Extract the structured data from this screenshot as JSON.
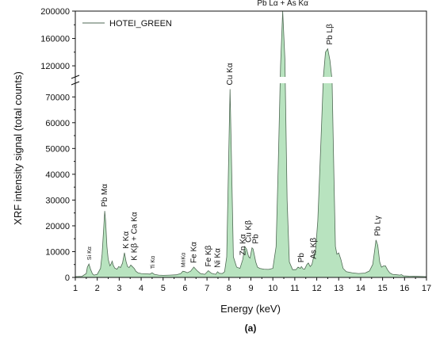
{
  "caption": "(a)",
  "chart_data": {
    "type": "area",
    "xlabel": "Energy (keV)",
    "ylabel": "XRF intensity signal (total counts)",
    "xlim": [
      1,
      17
    ],
    "x_ticks": [
      1,
      2,
      3,
      4,
      5,
      6,
      7,
      8,
      9,
      10,
      11,
      12,
      13,
      14,
      15,
      16,
      17
    ],
    "y_axis_break": true,
    "ylim_lower": [
      0,
      75000
    ],
    "y_ticks_lower": [
      0,
      10000,
      20000,
      30000,
      40000,
      50000,
      60000,
      70000
    ],
    "ylim_upper": [
      105000,
      200000
    ],
    "y_ticks_upper": [
      120000,
      160000,
      200000
    ],
    "legend": {
      "label": "HOTEI_GREEN",
      "placement": "top-left"
    },
    "series_color": "#b8e3bf",
    "line_color": "#4f6a54",
    "series": [
      {
        "x": [
          1.0,
          1.3,
          1.5,
          1.55,
          1.62,
          1.7,
          1.78,
          1.85,
          2.0,
          2.15,
          2.22,
          2.3,
          2.34,
          2.38,
          2.44,
          2.5,
          2.58,
          2.63,
          2.68,
          2.73,
          2.8,
          2.9,
          2.98,
          3.06,
          3.15,
          3.24,
          3.31,
          3.38,
          3.45,
          3.53,
          3.6,
          3.69,
          3.76,
          3.85,
          4.0,
          4.2,
          4.4,
          4.5,
          4.6,
          4.8,
          5.0,
          5.3,
          5.6,
          5.8,
          5.9,
          6.0,
          6.1,
          6.25,
          6.4,
          6.55,
          6.7,
          6.9,
          7.06,
          7.2,
          7.4,
          7.48,
          7.56,
          7.7,
          7.8,
          7.9,
          7.95,
          8.05,
          8.1,
          8.2,
          8.35,
          8.5,
          8.63,
          8.72,
          8.8,
          8.9,
          8.96,
          9.05,
          9.1,
          9.22,
          9.3,
          9.4,
          9.6,
          9.8,
          10.0,
          10.15,
          10.25,
          10.35,
          10.45,
          10.55,
          10.65,
          10.75,
          10.9,
          11.05,
          11.15,
          11.25,
          11.3,
          11.38,
          11.45,
          11.55,
          11.62,
          11.7,
          11.78,
          11.86,
          11.95,
          12.05,
          12.18,
          12.3,
          12.4,
          12.5,
          12.6,
          12.7,
          12.78,
          12.85,
          12.92,
          13.0,
          13.1,
          13.2,
          13.35,
          13.6,
          13.9,
          14.2,
          14.4,
          14.55,
          14.63,
          14.7,
          14.78,
          14.87,
          14.95,
          15.05,
          15.13,
          15.22,
          15.32,
          15.45,
          15.65,
          15.8,
          15.85,
          15.95,
          16.2,
          16.6,
          17.0
        ],
        "y": [
          300,
          400,
          1500,
          4000,
          5200,
          3000,
          1400,
          900,
          1200,
          3500,
          9000,
          20000,
          25800,
          22000,
          12000,
          7000,
          4500,
          5200,
          6300,
          4700,
          3600,
          3200,
          4200,
          3800,
          5500,
          9600,
          6200,
          4200,
          3800,
          4800,
          4200,
          3400,
          2400,
          1800,
          1500,
          1400,
          1300,
          1800,
          1200,
          900,
          800,
          900,
          1000,
          1500,
          2400,
          2200,
          1800,
          2400,
          4000,
          2600,
          1500,
          1200,
          2600,
          1600,
          1200,
          2200,
          1600,
          1500,
          2200,
          8000,
          30000,
          73000,
          52000,
          8000,
          4000,
          3500,
          7000,
          12000,
          11000,
          8000,
          7500,
          11500,
          11000,
          6000,
          4000,
          3500,
          3200,
          3100,
          3500,
          12000,
          45000,
          120000,
          200000,
          130000,
          30000,
          6000,
          3000,
          3000,
          4000,
          3500,
          4200,
          3300,
          3200,
          5000,
          5600,
          4200,
          5000,
          8000,
          11000,
          22000,
          50000,
          100000,
          140000,
          145000,
          128000,
          90000,
          40000,
          12000,
          9000,
          9500,
          7000,
          3500,
          2200,
          1800,
          1500,
          1700,
          2500,
          5000,
          10000,
          14500,
          12500,
          6000,
          4000,
          4500,
          4500,
          3000,
          1800,
          1200,
          1000,
          900,
          1100,
          600,
          500,
          400,
          300
        ]
      }
    ],
    "annotations": [
      {
        "text": "Si Kα",
        "x": 1.62,
        "y": 5200,
        "size": "small"
      },
      {
        "text": "Pb Mα",
        "x": 2.34,
        "y": 25800,
        "size": "normal"
      },
      {
        "text": "K Kα",
        "x": 3.31,
        "y": 9600,
        "size": "normal"
      },
      {
        "text": "K Kβ + Ca Kα",
        "x": 3.69,
        "y": 5000,
        "size": "normal"
      },
      {
        "text": "Ti Kα",
        "x": 4.5,
        "y": 1800,
        "size": "tiny"
      },
      {
        "text": "MnKα",
        "x": 5.9,
        "y": 2400,
        "size": "tiny"
      },
      {
        "text": "Fe Kα",
        "x": 6.4,
        "y": 4000,
        "size": "normal"
      },
      {
        "text": "Fe Kβ",
        "x": 7.06,
        "y": 2600,
        "size": "normal"
      },
      {
        "text": "Ni Kα",
        "x": 7.48,
        "y": 2200,
        "size": "normal"
      },
      {
        "text": "Cu Kα",
        "x": 8.05,
        "y": 73000,
        "size": "normal"
      },
      {
        "text": "Zn Kα",
        "x": 8.63,
        "y": 7000,
        "size": "normal"
      },
      {
        "text": "Cu Kβ",
        "x": 8.9,
        "y": 12000,
        "size": "normal"
      },
      {
        "text": "Pb",
        "x": 9.22,
        "y": 11500,
        "size": "normal"
      },
      {
        "text": "Pb Lα + As Kα",
        "x": 10.45,
        "y": 200000,
        "size": "normal"
      },
      {
        "text": "Pb",
        "x": 11.3,
        "y": 4200,
        "size": "normal"
      },
      {
        "text": "As Kβ",
        "x": 11.86,
        "y": 5600,
        "size": "normal"
      },
      {
        "text": "Pb Lβ",
        "x": 12.6,
        "y": 145000,
        "size": "normal"
      },
      {
        "text": "Pb Lγ",
        "x": 14.78,
        "y": 14500,
        "size": "normal"
      }
    ]
  }
}
